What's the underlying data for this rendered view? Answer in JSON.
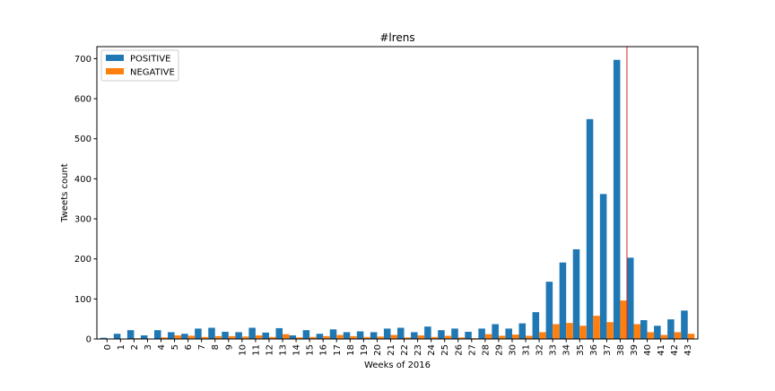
{
  "chart_data": {
    "type": "bar",
    "title": "#lrens",
    "xlabel": "Weeks of 2016",
    "ylabel": "Tweets count",
    "ylim": [
      0,
      730
    ],
    "yticks": [
      0,
      100,
      200,
      300,
      400,
      500,
      600,
      700
    ],
    "categories": [
      "0",
      "1",
      "2",
      "3",
      "4",
      "5",
      "6",
      "7",
      "8",
      "9",
      "10",
      "11",
      "12",
      "13",
      "14",
      "15",
      "16",
      "17",
      "18",
      "19",
      "20",
      "21",
      "22",
      "23",
      "24",
      "25",
      "26",
      "27",
      "28",
      "29",
      "30",
      "31",
      "32",
      "33",
      "34",
      "35",
      "36",
      "37",
      "38",
      "39",
      "40",
      "41",
      "42",
      "43"
    ],
    "series": [
      {
        "name": "POSITIVE",
        "color": "#1f77b4",
        "values": [
          3,
          13,
          22,
          9,
          22,
          17,
          13,
          26,
          28,
          18,
          17,
          28,
          16,
          27,
          9,
          22,
          13,
          24,
          17,
          19,
          17,
          26,
          28,
          17,
          31,
          22,
          26,
          18,
          26,
          37,
          26,
          39,
          67,
          143,
          191,
          224,
          549,
          362,
          697,
          203,
          47,
          33,
          49,
          71
        ]
      },
      {
        "name": "NEGATIVE",
        "color": "#ff7f0e",
        "values": [
          1,
          1,
          2,
          1,
          4,
          9,
          8,
          5,
          7,
          7,
          6,
          9,
          5,
          12,
          4,
          5,
          7,
          10,
          7,
          5,
          6,
          10,
          4,
          9,
          5,
          8,
          4,
          2,
          12,
          8,
          11,
          8,
          17,
          37,
          40,
          33,
          58,
          42,
          96,
          37,
          17,
          10,
          17,
          13
        ]
      }
    ],
    "vline": {
      "x": 38.5,
      "color": "#d62728"
    },
    "legend": {
      "position": "top-left"
    },
    "grid": false
  }
}
